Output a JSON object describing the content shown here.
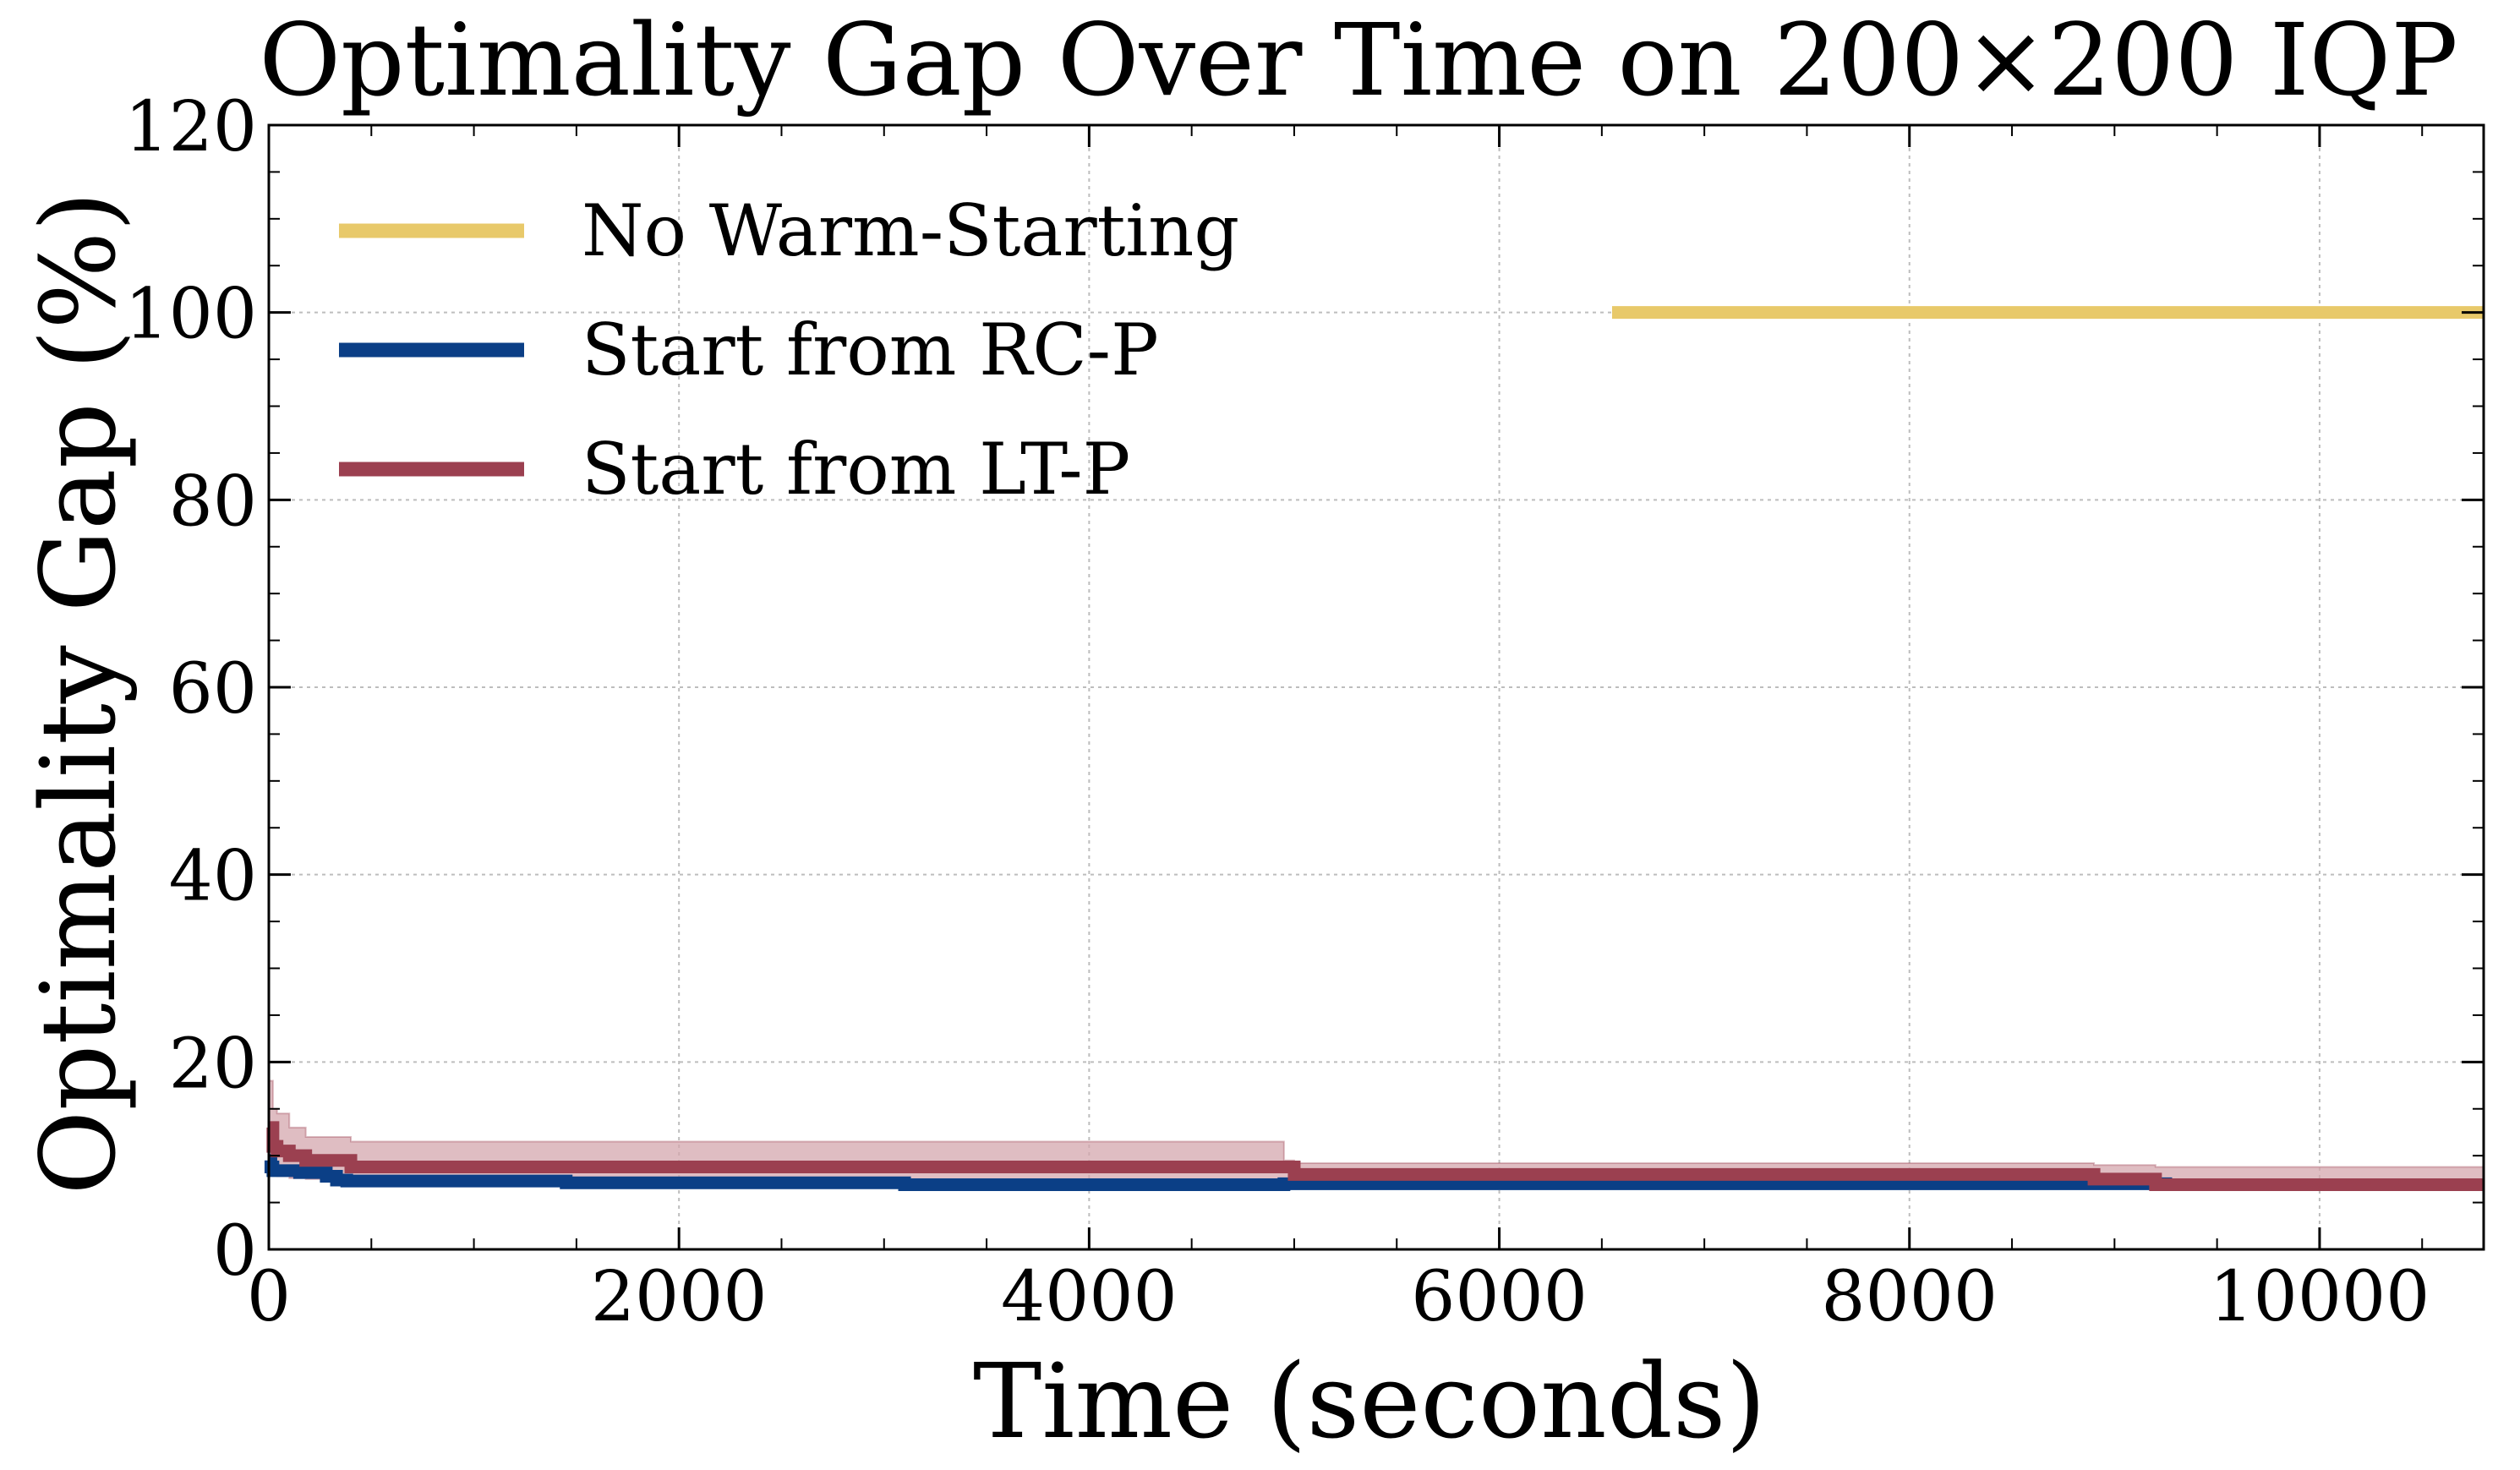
{
  "chart_data": {
    "type": "line",
    "title": "Optimality Gap Over Time on 200×200 IQP",
    "xlabel": "Time (seconds)",
    "ylabel": "Optimality Gap (%)",
    "xlim": [
      0,
      10800
    ],
    "ylim": [
      0,
      120
    ],
    "xticks": [
      0,
      2000,
      4000,
      6000,
      8000,
      10000
    ],
    "yticks": [
      0,
      20,
      40,
      60,
      80,
      100,
      120
    ],
    "grid": true,
    "legend_position": "top-left",
    "series": [
      {
        "name": "No Warm-Starting",
        "color": "#e8c96a",
        "x": [
          6550,
          10800
        ],
        "y": [
          100,
          100
        ]
      },
      {
        "name": "Start from RC-P",
        "color": "#0b3f86",
        "x": [
          0,
          10,
          20,
          150,
          280,
          330,
          380,
          1400,
          1450,
          3050,
          3100,
          4900,
          4950,
          9200,
          9250,
          10800
        ],
        "y": [
          9.5,
          8.8,
          8.4,
          8.2,
          7.8,
          7.4,
          7.3,
          7.3,
          7.1,
          7.1,
          6.9,
          6.9,
          7.0,
          7.0,
          6.9,
          6.9
        ]
      },
      {
        "name": "Start from LT-P",
        "color": "#9b4050",
        "x": [
          0,
          20,
          40,
          100,
          180,
          400,
          4950,
          5000,
          8900,
          9200,
          10800
        ],
        "y": [
          13.0,
          11.0,
          10.5,
          10.0,
          9.5,
          8.8,
          8.8,
          8.0,
          7.5,
          6.9,
          6.9
        ],
        "band_lower": [
          8.0,
          8.0,
          7.8,
          7.6,
          7.5,
          7.4,
          7.0,
          7.0,
          7.0,
          6.8,
          6.8
        ],
        "band_upper": [
          18.0,
          15.0,
          14.5,
          13.0,
          12.0,
          11.5,
          9.5,
          9.2,
          9.0,
          8.8,
          8.8
        ],
        "band_color": "#d4a7ae"
      }
    ]
  }
}
